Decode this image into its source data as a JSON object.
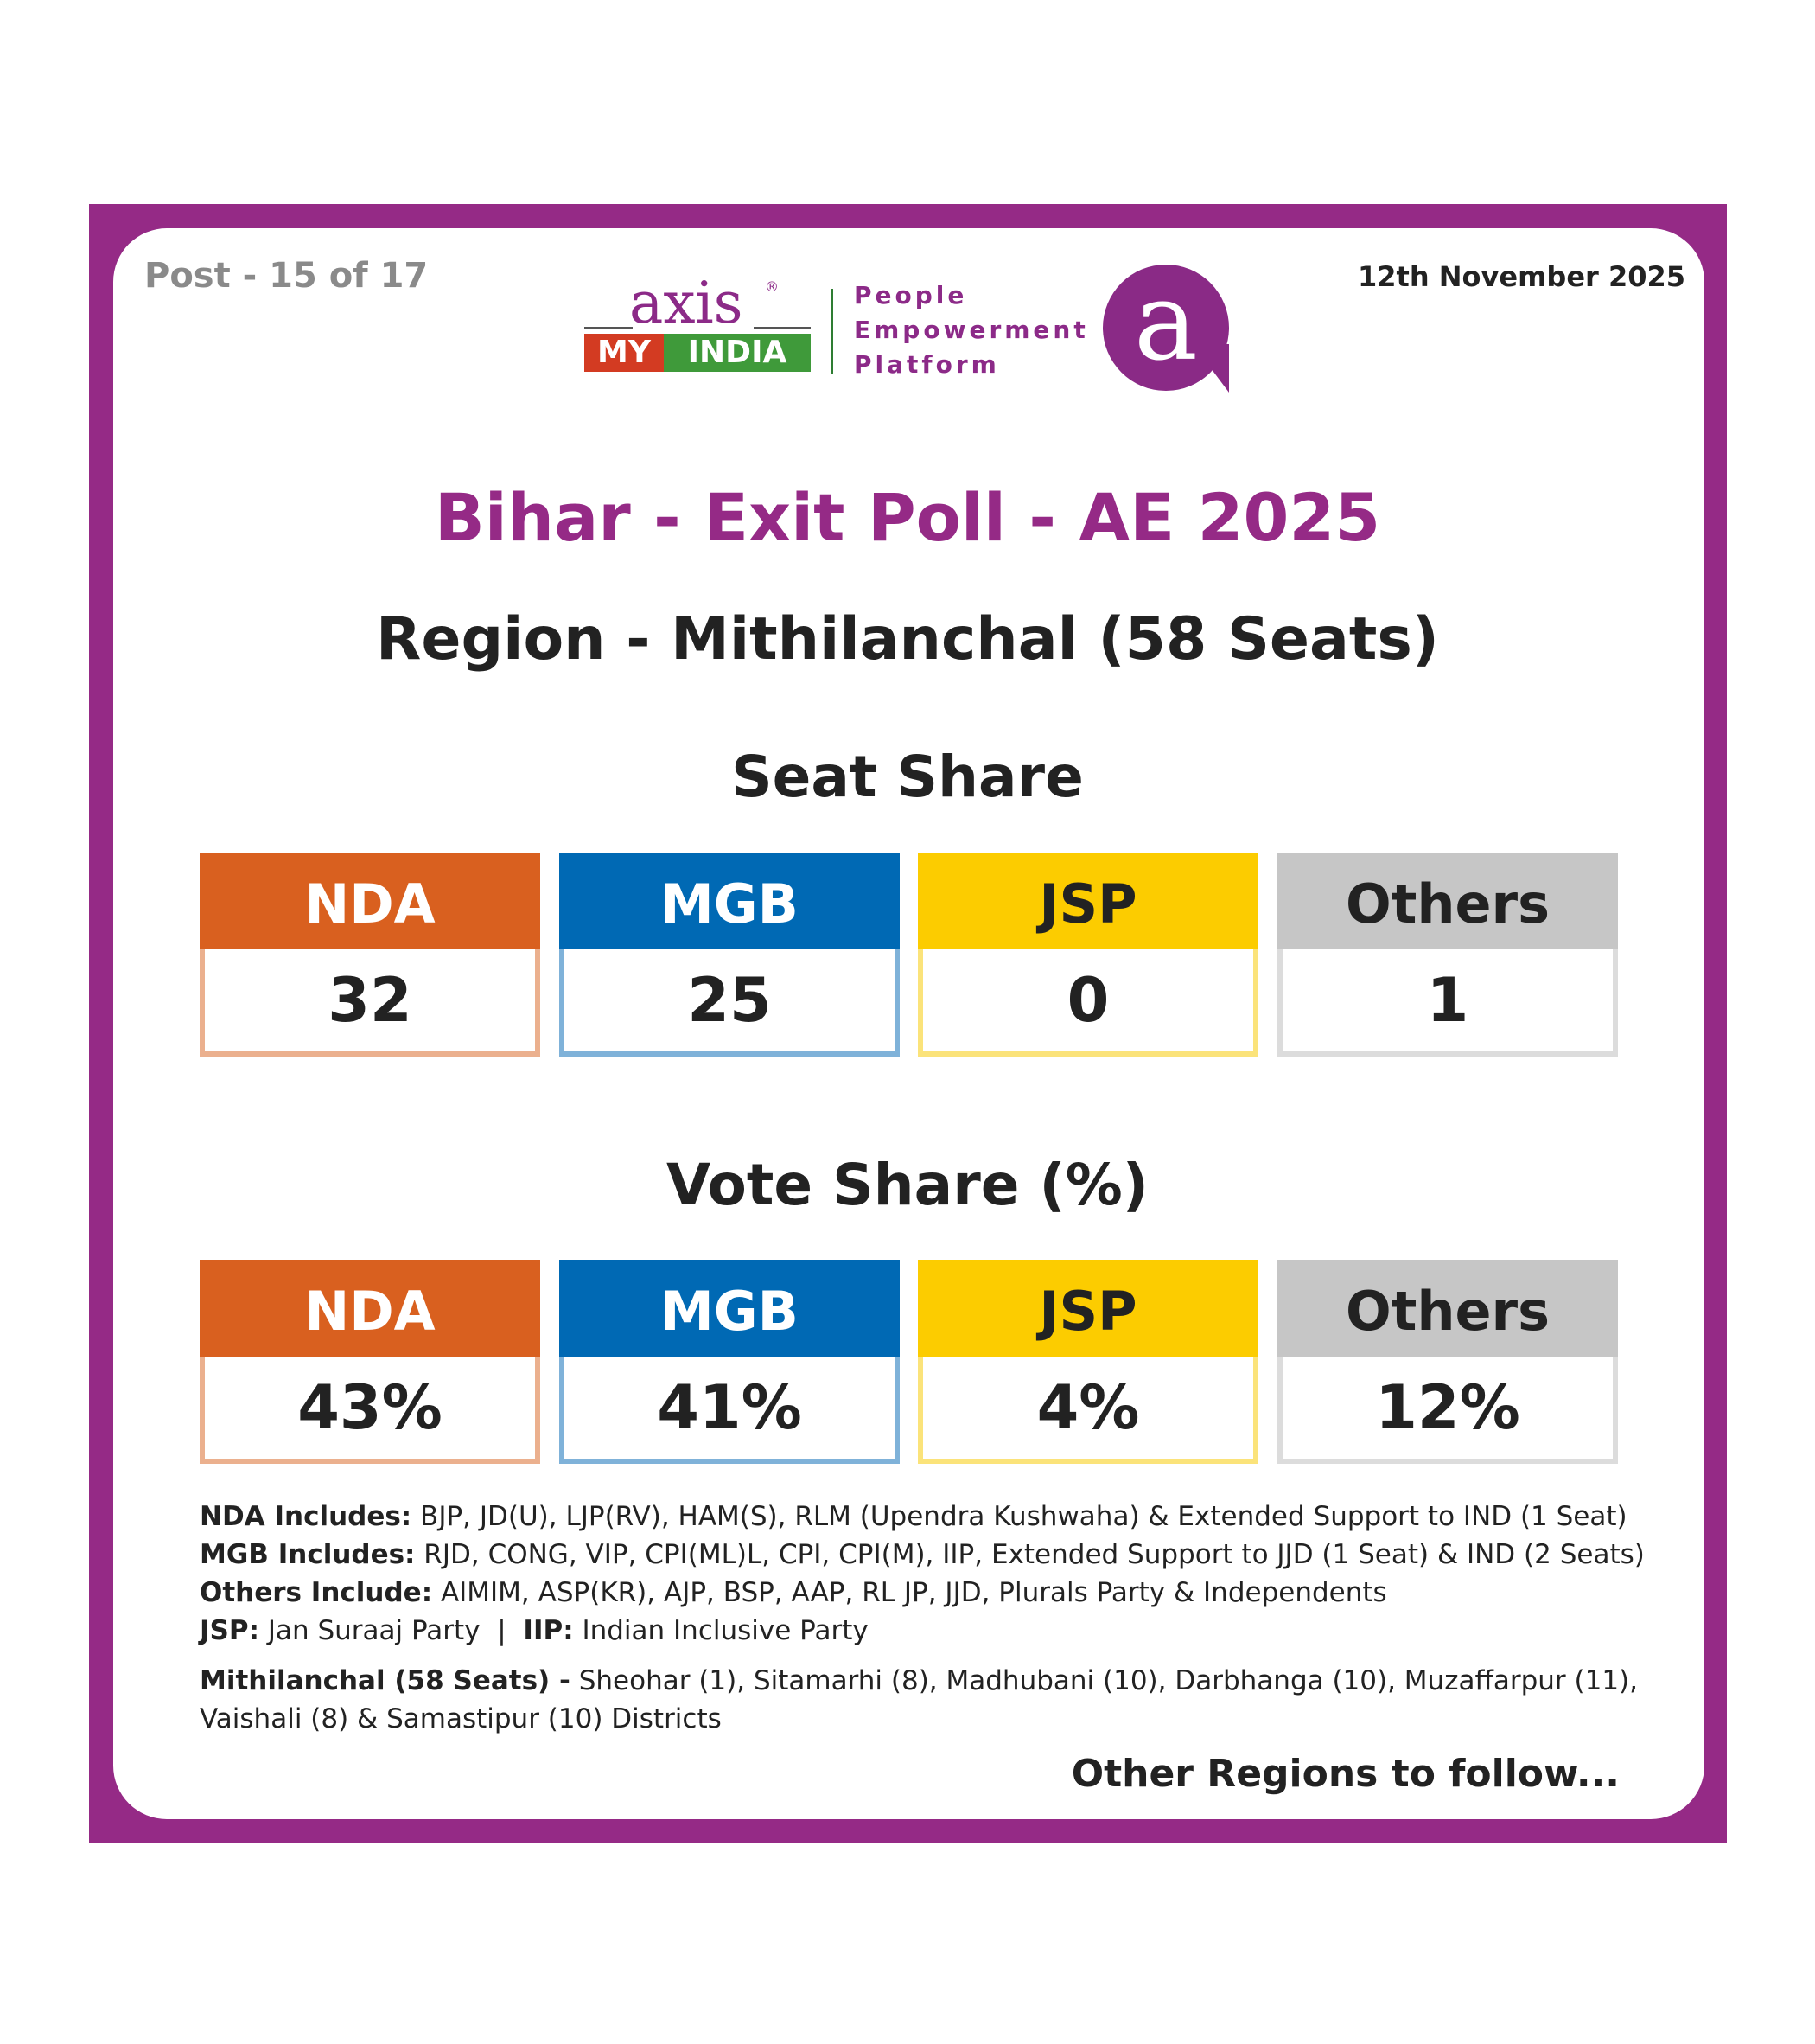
{
  "header": {
    "post": "Post - 15 of 17",
    "date": "12th November 2025",
    "logo": {
      "axis": "axis",
      "reg": "®",
      "my": "MY",
      "india": "INDIA",
      "tagline": [
        "People",
        "Empowerment",
        "Platform"
      ],
      "bubble_letter": "a"
    }
  },
  "title": "Bihar - Exit Poll - AE 2025",
  "region": "Region - Mithilanchal (58 Seats)",
  "seat_share": {
    "title": "Seat Share",
    "items": [
      {
        "label": "NDA",
        "value": "32"
      },
      {
        "label": "MGB",
        "value": "25"
      },
      {
        "label": "JSP",
        "value": "0"
      },
      {
        "label": "Others",
        "value": "1"
      }
    ]
  },
  "vote_share": {
    "title": "Vote Share (%)",
    "items": [
      {
        "label": "NDA",
        "value": "43%"
      },
      {
        "label": "MGB",
        "value": "41%"
      },
      {
        "label": "JSP",
        "value": "4%"
      },
      {
        "label": "Others",
        "value": "12%"
      }
    ]
  },
  "colors": {
    "frame": "#952a86",
    "nda": "#d9601f",
    "nda_border": "#ebb08e",
    "mgb": "#0069b4",
    "mgb_border": "#7fb2d9",
    "jsp": "#fccc00",
    "jsp_border": "#fbe37a",
    "others": "#c6c6c6",
    "others_border": "#dcdcdc"
  },
  "notes": {
    "nda_label": "NDA Includes:",
    "nda_text": " BJP, JD(U), LJP(RV), HAM(S), RLM (Upendra Kushwaha) & Extended Support to IND (1 Seat)",
    "mgb_label": "MGB Includes:",
    "mgb_text": " RJD, CONG, VIP, CPI(ML)L, CPI, CPI(M), IIP, Extended Support to JJD (1 Seat) & IND (2 Seats)",
    "others_label": "Others Include:",
    "others_text": " AIMIM, ASP(KR), AJP, BSP, AAP, RL JP, JJD, Plurals Party & Independents",
    "jsp_label": "JSP:",
    "jsp_text": " Jan Suraaj Party  |  ",
    "iip_label": "IIP:",
    "iip_text": " Indian Inclusive Party",
    "region_label": "Mithilanchal (58 Seats) -",
    "region_text": " Sheohar (1), Sitamarhi (8), Madhubani (10), Darbhanga (10), Muzaffarpur (11), Vaishali (8) & Samastipur (10) Districts"
  },
  "footer": "Other Regions to follow..."
}
